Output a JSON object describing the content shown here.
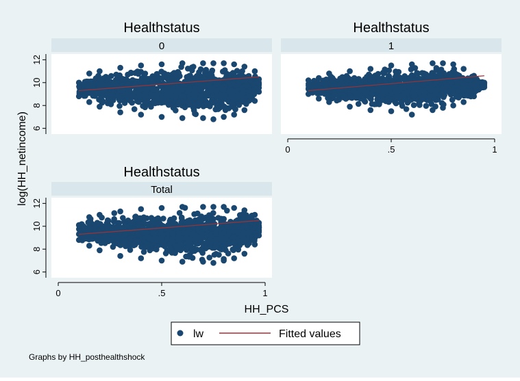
{
  "colors": {
    "scatter": "#1a476f",
    "fit_line": "#90353b",
    "strip": "#d9e6eb",
    "background": "#eaf2f3",
    "plot": "#ffffff"
  },
  "chart_data": {
    "type": "scatter",
    "subplot_title": "Healthstatus",
    "xlabel": "HH_PCS",
    "ylabel": "log(HH_netincome)",
    "xlim": [
      0,
      1
    ],
    "ylim": [
      5.5,
      12.5
    ],
    "x_ticks": [
      0,
      0.5,
      1
    ],
    "x_tick_labels": [
      "0",
      ".5",
      "1"
    ],
    "y_ticks": [
      6,
      8,
      10,
      12
    ],
    "y_tick_labels": [
      "6",
      "8",
      "10",
      "12"
    ],
    "grid": false,
    "legend_position": "bottom",
    "legend": [
      "lw",
      "Fitted values"
    ],
    "note": "Graphs by HH_posthealthshock",
    "panels": [
      {
        "label": "0",
        "scatter_envelope": {
          "x": [
            0.1,
            0.15,
            0.2,
            0.3,
            0.4,
            0.5,
            0.6,
            0.7,
            0.75,
            0.8,
            0.85,
            0.9,
            0.95,
            0.97
          ],
          "upper": [
            10.0,
            10.8,
            11.0,
            11.3,
            11.5,
            11.6,
            11.7,
            11.7,
            11.7,
            11.7,
            11.6,
            11.4,
            11.0,
            10.3
          ],
          "lower": [
            8.8,
            8.3,
            7.9,
            7.4,
            7.2,
            7.0,
            6.9,
            6.9,
            6.8,
            7.0,
            7.2,
            7.6,
            8.4,
            9.2
          ]
        },
        "fit": {
          "x": [
            0.1,
            0.97
          ],
          "y": [
            9.3,
            10.5
          ]
        }
      },
      {
        "label": "1",
        "scatter_envelope": {
          "x": [
            0.1,
            0.15,
            0.2,
            0.3,
            0.4,
            0.5,
            0.6,
            0.7,
            0.75,
            0.8,
            0.85,
            0.9,
            0.95
          ],
          "upper": [
            10.2,
            10.4,
            10.8,
            11.0,
            11.2,
            11.5,
            11.6,
            11.7,
            11.7,
            11.6,
            11.2,
            10.6,
            10.0
          ],
          "lower": [
            9.0,
            8.6,
            8.3,
            7.9,
            7.6,
            7.5,
            7.2,
            7.6,
            7.8,
            8.0,
            8.3,
            8.8,
            9.6
          ]
        },
        "fit": {
          "x": [
            0.1,
            0.95
          ],
          "y": [
            9.3,
            10.6
          ]
        }
      },
      {
        "label": "Total",
        "scatter_envelope": {
          "x": [
            0.1,
            0.15,
            0.2,
            0.3,
            0.4,
            0.5,
            0.6,
            0.7,
            0.75,
            0.8,
            0.85,
            0.9,
            0.95,
            0.97
          ],
          "upper": [
            10.1,
            10.8,
            11.0,
            11.3,
            11.5,
            11.6,
            11.7,
            11.7,
            11.7,
            11.7,
            11.6,
            11.4,
            11.0,
            10.3
          ],
          "lower": [
            8.8,
            8.3,
            7.9,
            7.4,
            7.2,
            7.0,
            6.9,
            6.9,
            6.8,
            7.0,
            7.2,
            7.6,
            8.4,
            9.2
          ]
        },
        "fit": {
          "x": [
            0.1,
            0.97
          ],
          "y": [
            9.3,
            10.5
          ]
        }
      }
    ]
  }
}
